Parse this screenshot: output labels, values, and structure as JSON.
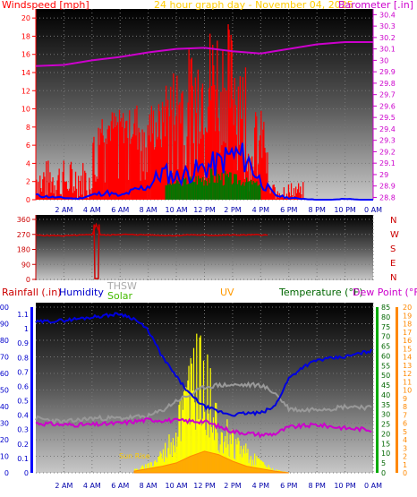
{
  "chart_data": [
    {
      "type": "line",
      "title": "24 hour graph day - November 04, 2025",
      "left_label": "Windspeed [mph]",
      "right_label": "Barometer [.in]",
      "x_ticks": [
        "2 AM",
        "4 AM",
        "6 AM",
        "8 AM",
        "10 AM",
        "12 PM",
        "2 PM",
        "4 PM",
        "6 PM",
        "8 PM",
        "10 PM",
        "0 AM"
      ],
      "x_range_hours": [
        0,
        24
      ],
      "y_left_ticks": [
        "0",
        "2",
        "4",
        "6",
        "8",
        "10",
        "12",
        "14",
        "16",
        "18",
        "20"
      ],
      "y_left_range": [
        0,
        21
      ],
      "y_right_ticks": [
        "28.8",
        "28.9",
        "29",
        "29.1",
        "29.2",
        "29.3",
        "29.4",
        "29.5",
        "29.6",
        "29.7",
        "29.8",
        "29.9",
        "30",
        "30.1",
        "30.2",
        "30.3",
        "30.4"
      ],
      "y_right_range": [
        28.78,
        30.45
      ],
      "colors": {
        "gust": "#ff0000",
        "wind": "#0000ff",
        "barometer": "#cc00cc",
        "solar": "#007700"
      },
      "series": [
        {
          "axis": "right",
          "kind": "barometer",
          "x": [
            0,
            2,
            4,
            6,
            8,
            10,
            12,
            14,
            16,
            18,
            20,
            22,
            24
          ],
          "values": [
            29.95,
            29.96,
            30.0,
            30.03,
            30.07,
            30.1,
            30.11,
            30.08,
            30.06,
            30.1,
            30.14,
            30.16,
            30.16
          ]
        },
        {
          "axis": "left",
          "kind": "wind",
          "x": [
            0,
            1,
            2,
            3,
            4,
            5,
            6,
            7,
            8,
            9,
            10,
            11,
            12,
            13,
            14,
            15,
            16,
            17,
            18,
            19,
            20,
            21,
            22,
            23,
            24
          ],
          "values": [
            0.5,
            0.3,
            0.2,
            0.1,
            0.5,
            0.8,
            0.4,
            1.0,
            1.5,
            3.0,
            2.5,
            3.0,
            3.5,
            4.0,
            5.0,
            4.5,
            2.0,
            0.5,
            0.2,
            0.1,
            0,
            0,
            0.1,
            0,
            0
          ]
        }
      ]
    },
    {
      "type": "line",
      "left_label": "",
      "right_labels": [
        "N",
        "W",
        "S",
        "E",
        "N"
      ],
      "y_left_ticks": [
        "0",
        "90",
        "180",
        "270",
        "360"
      ],
      "y_range": [
        0,
        360
      ],
      "x_range_hours": [
        0,
        24
      ],
      "colors": {
        "direction": "#cc0000"
      },
      "series": [
        {
          "kind": "direction",
          "x": [
            0,
            2,
            4,
            4.3,
            4.6,
            5,
            6,
            8,
            10,
            11,
            12,
            14,
            16,
            16.5
          ],
          "values": [
            265,
            262,
            268,
            330,
            268,
            265,
            270,
            267,
            263,
            268,
            265,
            266,
            268,
            265
          ]
        }
      ]
    },
    {
      "type": "line",
      "labels": {
        "rain": "Rainfall (.in)",
        "humidity": "Humidity",
        "thsw": "THSW",
        "solar": "Solar",
        "uv": "UV",
        "temperature": "Temperature (°F)",
        "dewpoint": "Dew Point (°F)"
      },
      "annotation": "Sun Rise",
      "x_ticks": [
        "2 AM",
        "4 AM",
        "6 AM",
        "8 AM",
        "10 AM",
        "12 PM",
        "2 PM",
        "4 PM",
        "6 PM",
        "8 PM",
        "10 PM",
        "0 AM"
      ],
      "x_range_hours": [
        0,
        24
      ],
      "rain_ticks": [
        "0",
        "0.1",
        "0.2",
        "0.3",
        "0.4",
        "0.5",
        "0.6",
        "0.7",
        "0.8",
        "0.9",
        "1",
        "1.1"
      ],
      "humidity_ticks": [
        "0",
        "10",
        "20",
        "30",
        "40",
        "50",
        "60",
        "70",
        "80",
        "90",
        "100"
      ],
      "temp_ticks": [
        "0",
        "5",
        "10",
        "15",
        "20",
        "25",
        "30",
        "35",
        "40",
        "45",
        "50",
        "55",
        "60",
        "65",
        "70",
        "75",
        "80",
        "85"
      ],
      "dew_ticks": [
        "0",
        "1",
        "2",
        "3",
        "4",
        "5",
        "6",
        "7",
        "8",
        "9",
        "10",
        "11",
        "12",
        "13",
        "14",
        "15",
        "16",
        "17",
        "18",
        "19",
        "20"
      ],
      "colors": {
        "humidity": "#0000dd",
        "temperature": "#888888",
        "thsw": "#bbbbbb",
        "dewpoint": "#cc00cc",
        "solar": "#ffff00",
        "uv": "#ff8800",
        "rain_axis": "#0000ff",
        "temp_axis": "#006600",
        "dew_axis": "#ff8800"
      },
      "series": [
        {
          "kind": "humidity",
          "x": [
            0,
            2,
            4,
            6,
            7,
            8,
            9,
            10,
            11,
            12,
            13,
            14,
            15,
            16,
            17,
            18,
            19,
            20,
            21,
            22,
            23,
            24
          ],
          "values": [
            91,
            92,
            94,
            96,
            93,
            86,
            70,
            58,
            47,
            40,
            37,
            35,
            36,
            36,
            40,
            57,
            64,
            68,
            69,
            70,
            72,
            74
          ]
        },
        {
          "kind": "temperature",
          "x": [
            0,
            2,
            4,
            6,
            8,
            9,
            10,
            11,
            12,
            13,
            14,
            15,
            16,
            17,
            18,
            19,
            20,
            21,
            22,
            23,
            24
          ],
          "values": [
            28,
            26,
            28,
            28,
            29,
            32,
            37,
            40,
            44,
            45,
            45,
            45,
            45,
            41,
            33,
            32,
            33,
            33,
            34,
            34,
            33
          ]
        },
        {
          "kind": "dewpoint",
          "x": [
            0,
            2,
            4,
            6,
            8,
            10,
            12,
            14,
            16,
            17,
            18,
            20,
            22,
            24
          ],
          "values": [
            6.0,
            5.8,
            5.8,
            6.0,
            6.4,
            6.3,
            6.2,
            5.0,
            4.6,
            4.7,
            5.5,
            5.8,
            5.4,
            5.2
          ]
        },
        {
          "kind": "solar",
          "x": [
            7,
            8,
            9,
            10,
            11,
            11.5,
            12,
            12.5,
            13,
            14,
            15,
            16,
            17,
            18
          ],
          "values": [
            2,
            5,
            12,
            30,
            58,
            70,
            62,
            50,
            35,
            22,
            14,
            6,
            2,
            0
          ]
        },
        {
          "kind": "uv",
          "x": [
            7,
            8,
            9,
            10,
            11,
            12,
            13,
            14,
            15,
            16,
            17,
            18
          ],
          "values": [
            0.2,
            0.5,
            0.8,
            1.2,
            2.0,
            2.6,
            2.2,
            1.4,
            0.8,
            0.5,
            0.2,
            0
          ]
        }
      ]
    }
  ]
}
